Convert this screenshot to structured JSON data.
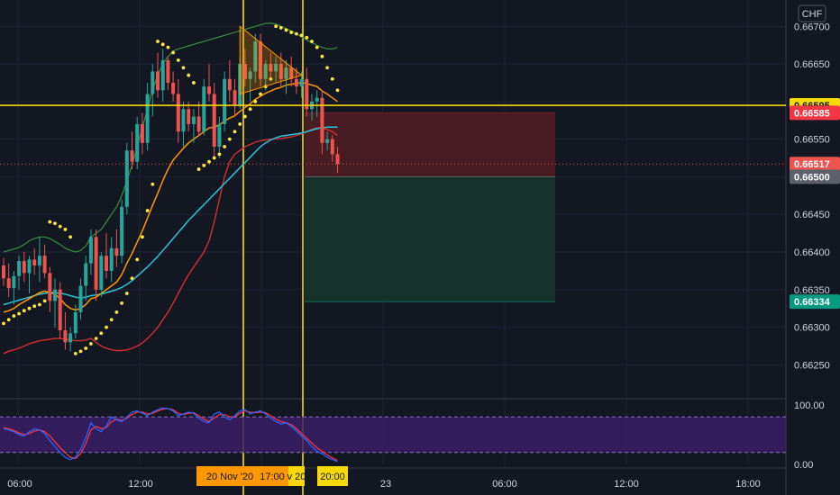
{
  "chart_data": [
    {
      "type": "candlestick",
      "currency": "CHF",
      "ylim": [
        0.66205,
        0.66735
      ],
      "y_ticks": [
        "0.66700",
        "0.66650",
        "0.66550",
        "0.66450",
        "0.66400",
        "0.66350",
        "0.66300",
        "0.66250"
      ],
      "x_ticks": [
        "06:00",
        "12:00",
        "23",
        "06:00",
        "12:00",
        "18:00"
      ],
      "time_labels": [
        "20 Nov '20",
        "17:00",
        "v 20",
        "20:00"
      ],
      "price_tags": [
        {
          "label": "0.66595",
          "value": 0.66595,
          "bg": "#f5d90a",
          "fg": "#131722"
        },
        {
          "label": "0.66585",
          "value": 0.66585,
          "bg": "#f23645",
          "fg": "#ffffff"
        },
        {
          "label": "0.66517",
          "value": 0.66517,
          "bg": "#ef5350",
          "fg": "#ffffff"
        },
        {
          "label": "0.66500",
          "value": 0.665,
          "bg": "#5d606b",
          "fg": "#ffffff"
        },
        {
          "label": "0.66334",
          "value": 0.66334,
          "bg": "#089981",
          "fg": "#ffffff"
        }
      ],
      "horizontal_line": {
        "value": 0.66595,
        "color": "#f5d90a"
      },
      "position": {
        "entry": 0.665,
        "stop": 0.66585,
        "target": 0.66334
      },
      "candles": [
        [
          0.66382,
          0.66392,
          0.66355,
          0.66365
        ],
        [
          0.66365,
          0.66385,
          0.6634,
          0.66352
        ],
        [
          0.66352,
          0.66375,
          0.6633,
          0.66368
        ],
        [
          0.66368,
          0.66395,
          0.6635,
          0.66388
        ],
        [
          0.66388,
          0.664,
          0.6636,
          0.66372
        ],
        [
          0.66372,
          0.66395,
          0.66345,
          0.6639
        ],
        [
          0.6639,
          0.66405,
          0.6637,
          0.66382
        ],
        [
          0.66382,
          0.6642,
          0.6636,
          0.66395
        ],
        [
          0.66395,
          0.6641,
          0.66365,
          0.66372
        ],
        [
          0.66372,
          0.6638,
          0.6632,
          0.66335
        ],
        [
          0.66335,
          0.66365,
          0.663,
          0.6635
        ],
        [
          0.6635,
          0.6636,
          0.66285,
          0.66296
        ],
        [
          0.66296,
          0.6632,
          0.6627,
          0.6628
        ],
        [
          0.6628,
          0.663,
          0.66268,
          0.66292
        ],
        [
          0.66292,
          0.6633,
          0.66285,
          0.6632
        ],
        [
          0.6632,
          0.66365,
          0.6631,
          0.66355
        ],
        [
          0.66355,
          0.66395,
          0.66335,
          0.66385
        ],
        [
          0.66385,
          0.6643,
          0.6637,
          0.6642
        ],
        [
          0.6642,
          0.6643,
          0.66335,
          0.6635
        ],
        [
          0.6635,
          0.664,
          0.6634,
          0.66395
        ],
        [
          0.66395,
          0.66425,
          0.66365,
          0.66375
        ],
        [
          0.66375,
          0.6642,
          0.6636,
          0.66405
        ],
        [
          0.66405,
          0.6643,
          0.6638,
          0.66395
        ],
        [
          0.66395,
          0.6647,
          0.66385,
          0.6646
        ],
        [
          0.6646,
          0.66545,
          0.6645,
          0.66535
        ],
        [
          0.66535,
          0.6656,
          0.6651,
          0.6652
        ],
        [
          0.6652,
          0.6658,
          0.6651,
          0.6657
        ],
        [
          0.6657,
          0.66585,
          0.6653,
          0.66545
        ],
        [
          0.66545,
          0.66625,
          0.66535,
          0.6661
        ],
        [
          0.6661,
          0.6665,
          0.6658,
          0.6664
        ],
        [
          0.6664,
          0.66665,
          0.66605,
          0.66615
        ],
        [
          0.66615,
          0.6667,
          0.666,
          0.66655
        ],
        [
          0.66655,
          0.6666,
          0.66615,
          0.66625
        ],
        [
          0.66625,
          0.6664,
          0.666,
          0.6661
        ],
        [
          0.6661,
          0.6663,
          0.66545,
          0.6656
        ],
        [
          0.6656,
          0.666,
          0.6654,
          0.6659
        ],
        [
          0.6659,
          0.666,
          0.6656,
          0.6657
        ],
        [
          0.6657,
          0.6659,
          0.66545,
          0.6658
        ],
        [
          0.6658,
          0.666,
          0.66555,
          0.6656
        ],
        [
          0.6656,
          0.6663,
          0.66555,
          0.6662
        ],
        [
          0.6662,
          0.6665,
          0.666,
          0.6661
        ],
        [
          0.6661,
          0.66625,
          0.66525,
          0.6654
        ],
        [
          0.6654,
          0.6658,
          0.66525,
          0.6657
        ],
        [
          0.6657,
          0.6664,
          0.6656,
          0.6663
        ],
        [
          0.6663,
          0.66655,
          0.666,
          0.66615
        ],
        [
          0.66615,
          0.6663,
          0.6658,
          0.66595
        ],
        [
          0.66595,
          0.6666,
          0.6659,
          0.6665
        ],
        [
          0.6665,
          0.6667,
          0.6662,
          0.6663
        ],
        [
          0.6663,
          0.66645,
          0.666,
          0.6664
        ],
        [
          0.6664,
          0.6669,
          0.66625,
          0.6668
        ],
        [
          0.6668,
          0.6669,
          0.6662,
          0.6663
        ],
        [
          0.6663,
          0.66655,
          0.66615,
          0.6665
        ],
        [
          0.6665,
          0.66665,
          0.6663,
          0.6664
        ],
        [
          0.6664,
          0.6666,
          0.66625,
          0.6665
        ],
        [
          0.6665,
          0.66665,
          0.6662,
          0.6663
        ],
        [
          0.6663,
          0.66655,
          0.6661,
          0.66645
        ],
        [
          0.66645,
          0.6666,
          0.6662,
          0.6663
        ],
        [
          0.6663,
          0.66645,
          0.6661,
          0.6662
        ],
        [
          0.6662,
          0.6664,
          0.66605,
          0.6663
        ],
        [
          0.6663,
          0.66645,
          0.6658,
          0.6659
        ],
        [
          0.6659,
          0.6661,
          0.66575,
          0.666
        ],
        [
          0.666,
          0.66615,
          0.6658,
          0.66605
        ],
        [
          0.66605,
          0.66615,
          0.6653,
          0.66545
        ],
        [
          0.66545,
          0.6656,
          0.66535,
          0.6655
        ],
        [
          0.6655,
          0.66555,
          0.6652,
          0.6653
        ],
        [
          0.6653,
          0.6654,
          0.66505,
          0.66517
        ]
      ],
      "sma_red": [
        0.66265,
        0.66268,
        0.6627,
        0.66272,
        0.66275,
        0.66278,
        0.6628,
        0.66282,
        0.66283,
        0.66284,
        0.66285,
        0.66285,
        0.66284,
        0.66283,
        0.66282,
        0.66282,
        0.66283,
        0.66285,
        0.6628,
        0.66275,
        0.66272,
        0.6627,
        0.66269,
        0.66269,
        0.6627,
        0.66272,
        0.66275,
        0.66279,
        0.66285,
        0.66292,
        0.663,
        0.6631,
        0.6632,
        0.66332,
        0.66345,
        0.66358,
        0.6637,
        0.6638,
        0.6639,
        0.664,
        0.66415,
        0.6644,
        0.6647,
        0.665,
        0.6652,
        0.6653,
        0.66535,
        0.6654,
        0.66543,
        0.66546,
        0.66548,
        0.66549,
        0.6655,
        0.6655,
        0.66551,
        0.66552,
        0.66553,
        0.66555,
        0.66557,
        0.6656,
        0.66563,
        0.66565,
        0.66565,
        0.66563,
        0.6656,
        0.66555
      ],
      "sma_cyan": [
        0.6633,
        0.66332,
        0.66334,
        0.66336,
        0.66338,
        0.6634,
        0.66342,
        0.66344,
        0.66345,
        0.66346,
        0.66346,
        0.66345,
        0.66344,
        0.66342,
        0.6634,
        0.66339,
        0.6634,
        0.66342,
        0.66343,
        0.66344,
        0.66346,
        0.66348,
        0.6635,
        0.66353,
        0.66357,
        0.66362,
        0.66368,
        0.66374,
        0.6638,
        0.66387,
        0.66394,
        0.66402,
        0.6641,
        0.66418,
        0.66426,
        0.66434,
        0.66442,
        0.66449,
        0.66456,
        0.66463,
        0.6647,
        0.66477,
        0.66484,
        0.66491,
        0.66498,
        0.66505,
        0.66512,
        0.66519,
        0.66526,
        0.66533,
        0.6654,
        0.66545,
        0.66549,
        0.66552,
        0.66554,
        0.66555,
        0.66556,
        0.66557,
        0.66558,
        0.6656,
        0.66562,
        0.66564,
        0.66565,
        0.66566,
        0.66566,
        0.66566
      ],
      "ema_orange": [
        0.6632,
        0.66322,
        0.66325,
        0.6633,
        0.66334,
        0.66338,
        0.66342,
        0.66346,
        0.66348,
        0.66346,
        0.66344,
        0.66338,
        0.6633,
        0.66325,
        0.66323,
        0.66325,
        0.6633,
        0.66338,
        0.6634,
        0.66345,
        0.6635,
        0.66355,
        0.6636,
        0.6637,
        0.66385,
        0.66398,
        0.66413,
        0.66428,
        0.66445,
        0.66462,
        0.66478,
        0.66495,
        0.6651,
        0.66522,
        0.6653,
        0.66538,
        0.66545,
        0.6655,
        0.66555,
        0.6656,
        0.66565,
        0.66566,
        0.66569,
        0.66574,
        0.66578,
        0.66581,
        0.66587,
        0.66592,
        0.66597,
        0.66603,
        0.66607,
        0.66611,
        0.66614,
        0.66617,
        0.66619,
        0.66622,
        0.66623,
        0.66624,
        0.66625,
        0.66624,
        0.66622,
        0.6662,
        0.66614,
        0.6661,
        0.66605,
        0.666
      ],
      "band_green": [
        0.664,
        0.66402,
        0.66404,
        0.66406,
        0.6641,
        0.66415,
        0.66418,
        0.6642,
        0.6642,
        0.66418,
        0.66414,
        0.6641,
        0.66405,
        0.66402,
        0.664,
        0.66402,
        0.66408,
        0.6642,
        0.66425,
        0.6643,
        0.6644,
        0.6645,
        0.6646,
        0.66475,
        0.66495,
        0.66515,
        0.6654,
        0.66565,
        0.6659,
        0.66615,
        0.66635,
        0.6665,
        0.6666,
        0.66667,
        0.6667,
        0.66672,
        0.66674,
        0.66676,
        0.66678,
        0.6668,
        0.66682,
        0.66684,
        0.66686,
        0.66688,
        0.6669,
        0.66692,
        0.66694,
        0.66696,
        0.66698,
        0.667,
        0.66702,
        0.66704,
        0.66704,
        0.66703,
        0.667,
        0.66697,
        0.66694,
        0.6669,
        0.66686,
        0.66682,
        0.66678,
        0.66675,
        0.66672,
        0.6667,
        0.6667,
        0.66672
      ],
      "sar_dots": [
        0.66305,
        0.6631,
        0.66315,
        0.66318,
        0.66322,
        0.66325,
        0.66328,
        0.6633,
        0.66335,
        0.6644,
        0.66438,
        0.66434,
        0.6643,
        0.6642,
        0.66265,
        0.66268,
        0.66272,
        0.66278,
        0.66285,
        0.66292,
        0.663,
        0.6631,
        0.6632,
        0.66332,
        0.66345,
        0.66365,
        0.6639,
        0.6642,
        0.66455,
        0.6649,
        0.6668,
        0.66676,
        0.66672,
        0.66665,
        0.66655,
        0.66645,
        0.66635,
        0.66625,
        0.6651,
        0.66515,
        0.6652,
        0.66525,
        0.6653,
        0.6654,
        0.6655,
        0.6656,
        0.6657,
        0.6658,
        0.6659,
        0.666,
        0.6661,
        0.6662,
        0.6663,
        0.667,
        0.66698,
        0.66695,
        0.66692,
        0.6669,
        0.66688,
        0.66685,
        0.6668,
        0.66672,
        0.6666,
        0.66645,
        0.6663,
        0.66615
      ],
      "colors": {
        "bg": "#131722",
        "up": "#26a69a",
        "down": "#ef5350",
        "grid": "#1f2335",
        "orange": "#ff9800",
        "cyan": "#26c6da",
        "red": "#d32f2f",
        "green": "#388e3c",
        "sar": "#ffeb3b",
        "vline": "#f5d90a",
        "stop_zone": "#4a1c23",
        "target_zone": "#15332a"
      }
    },
    {
      "type": "line",
      "name": "stochastic",
      "ylim": [
        0,
        100
      ],
      "y_ticks": [
        "100.00",
        "0.00"
      ],
      "bands": [
        80,
        20
      ],
      "k": [
        60,
        58,
        55,
        50,
        48,
        55,
        60,
        58,
        52,
        40,
        30,
        20,
        12,
        8,
        12,
        25,
        45,
        70,
        60,
        55,
        65,
        80,
        75,
        72,
        80,
        88,
        90,
        86,
        82,
        88,
        92,
        95,
        94,
        90,
        82,
        85,
        88,
        86,
        78,
        72,
        70,
        85,
        88,
        80,
        75,
        82,
        90,
        92,
        85,
        88,
        90,
        85,
        78,
        72,
        68,
        70,
        64,
        56,
        48,
        40,
        30,
        22,
        18,
        12,
        8,
        5
      ],
      "d": [
        62,
        60,
        57,
        53,
        50,
        52,
        56,
        58,
        55,
        48,
        38,
        28,
        20,
        12,
        10,
        18,
        35,
        58,
        64,
        60,
        62,
        72,
        76,
        74,
        78,
        84,
        88,
        88,
        85,
        86,
        90,
        93,
        94,
        92,
        86,
        84,
        86,
        87,
        82,
        76,
        72,
        78,
        84,
        84,
        80,
        80,
        86,
        90,
        88,
        87,
        88,
        87,
        82,
        76,
        72,
        70,
        67,
        60,
        52,
        44,
        36,
        28,
        22,
        16,
        11,
        7
      ],
      "colors": {
        "k": "#2962ff",
        "d": "#f23645",
        "band_fill": "#3b1f66",
        "band_line": "#8a6fc4"
      }
    }
  ]
}
